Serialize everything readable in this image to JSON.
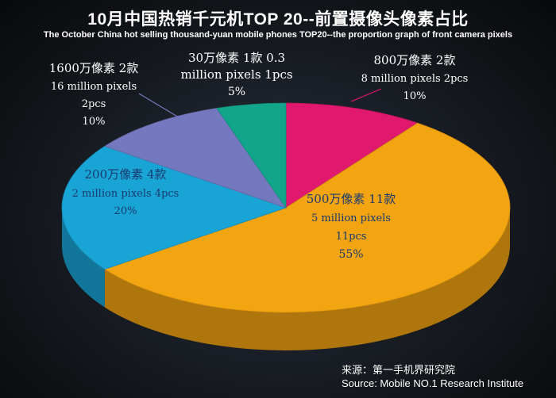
{
  "title": "10月中国热销千元机TOP 20--前置摄像头像素占比",
  "subtitle": "The October China hot selling thousand-yuan mobile phones TOP20--the proportion graph of front camera pixels",
  "source": {
    "cn": "来源：第一手机界研究院",
    "en": "Source: Mobile NO.1 Research Institute"
  },
  "colors": {
    "p800w": "#e0186e",
    "p500w": "#f2a411",
    "p200w": "#19a4d6",
    "p1600w": "#7479bf",
    "p30w": "#13a58c"
  },
  "chart_data": {
    "type": "pie",
    "title": "10月中国热销千元机TOP 20--前置摄像头像素占比",
    "subtitle": "The October China hot selling thousand-yuan mobile phones TOP20--the proportion graph of front camera pixels",
    "slices": [
      {
        "key": "p800w",
        "label_cn": "800万像素 2款",
        "label_en": "8 million pixels 2pcs",
        "count": 2,
        "percent_label": "10%",
        "value": 10
      },
      {
        "key": "p500w",
        "label_cn": "500万像素 11款",
        "label_en": "5 million pixels",
        "count_label": "11pcs",
        "count": 11,
        "percent_label": "55%",
        "value": 55
      },
      {
        "key": "p200w",
        "label_cn": "200万像素 4款",
        "label_en": "2 million pixels 4pcs",
        "count": 4,
        "percent_label": "20%",
        "value": 20
      },
      {
        "key": "p1600w",
        "label_cn": "1600万像素 2款",
        "label_en": "16 million pixels",
        "count_label": "2pcs",
        "count": 2,
        "percent_label": "10%",
        "value": 10
      },
      {
        "key": "p30w",
        "label_cn": "30万像素 1款 0.3",
        "label_en": "million pixels 1pcs",
        "count": 1,
        "percent_label": "5%",
        "value": 5
      }
    ]
  }
}
